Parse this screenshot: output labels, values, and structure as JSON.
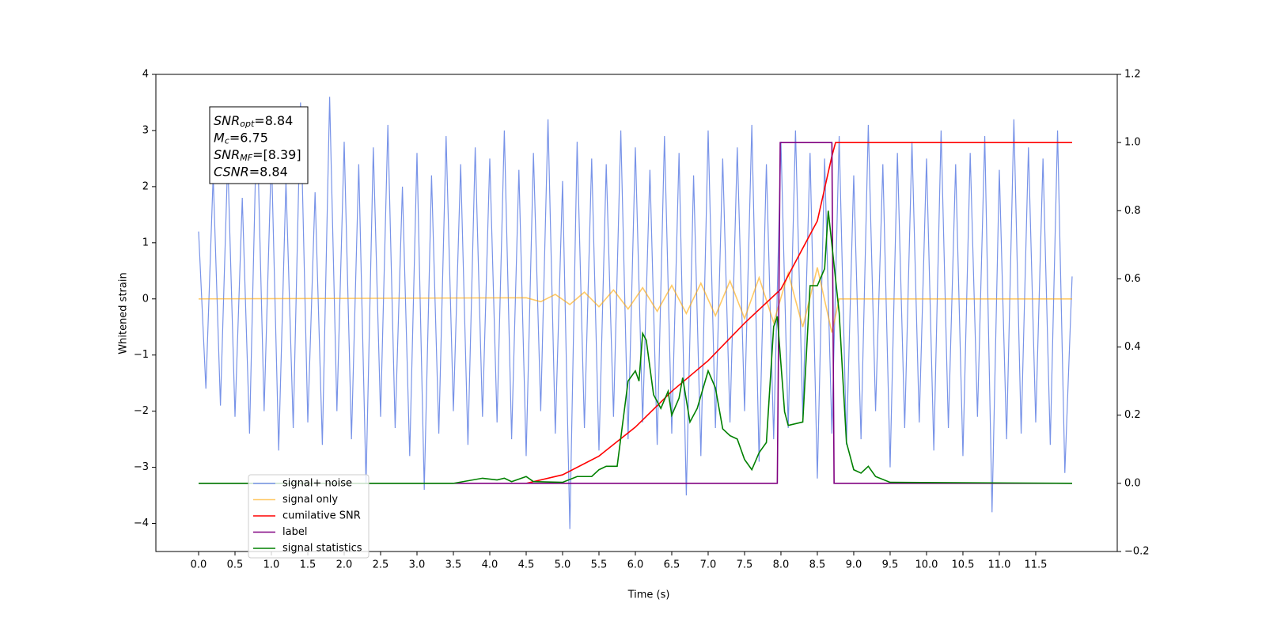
{
  "chart_data": {
    "type": "line",
    "xlabel": "Time (s)",
    "ylabel": "Whitened strain",
    "xlim": [
      -0.587,
      12.62
    ],
    "ylim": [
      -4.5,
      4
    ],
    "y2lim": [
      -0.2,
      1.2
    ],
    "xticks": [
      {
        "value": 0,
        "label": "0.0"
      },
      {
        "value": 0.5,
        "label": "0.5"
      },
      {
        "value": 1,
        "label": "1.0"
      },
      {
        "value": 1.5,
        "label": "1.5"
      },
      {
        "value": 2,
        "label": "2.0"
      },
      {
        "value": 2.5,
        "label": "2.5"
      },
      {
        "value": 3,
        "label": "3.0"
      },
      {
        "value": 3.5,
        "label": "3.5"
      },
      {
        "value": 4,
        "label": "4.0"
      },
      {
        "value": 4.5,
        "label": "4.5"
      },
      {
        "value": 5,
        "label": "5.0"
      },
      {
        "value": 5.5,
        "label": "5.5"
      },
      {
        "value": 6,
        "label": "6.0"
      },
      {
        "value": 6.5,
        "label": "6.5"
      },
      {
        "value": 7,
        "label": "7.0"
      },
      {
        "value": 7.5,
        "label": "7.5"
      },
      {
        "value": 8,
        "label": "8.0"
      },
      {
        "value": 8.5,
        "label": "8.5"
      },
      {
        "value": 9,
        "label": "9.0"
      },
      {
        "value": 9.5,
        "label": "9.5"
      },
      {
        "value": 10,
        "label": "10.0"
      },
      {
        "value": 10.5,
        "label": "10.5"
      },
      {
        "value": 11,
        "label": "11.0"
      },
      {
        "value": 11.5,
        "label": "11.5"
      }
    ],
    "yticks": [
      {
        "value": -4,
        "label": "−4"
      },
      {
        "value": -3,
        "label": "−3"
      },
      {
        "value": -2,
        "label": "−2"
      },
      {
        "value": -1,
        "label": "−1"
      },
      0,
      1,
      2,
      3,
      4
    ],
    "y2ticks": [
      {
        "value": -0.2,
        "label": "−0.2"
      },
      {
        "value": 0,
        "label": "0.0"
      },
      {
        "value": 0.2,
        "label": "0.2"
      },
      {
        "value": 0.4,
        "label": "0.4"
      },
      {
        "value": 0.6,
        "label": "0.6"
      },
      {
        "value": 0.8,
        "label": "0.8"
      },
      {
        "value": 1,
        "label": "1.0"
      },
      {
        "value": 1.2,
        "label": "1.2"
      }
    ],
    "legend": "lower left",
    "annotations": [
      {
        "main": "SNR",
        "sub": "opt",
        "rest": "=8.84"
      },
      {
        "main": "M",
        "sub": "c",
        "rest": "=6.75"
      },
      {
        "main": "SNR",
        "sub": "MF",
        "rest": "=[8.39]"
      },
      {
        "main": "CSNR",
        "rest": "=8.84"
      }
    ],
    "series": [
      {
        "name": "signal+ noise",
        "color": "#7893e8",
        "x": [
          0,
          0.1,
          0.2,
          0.3,
          0.4,
          0.5,
          0.6,
          0.7,
          0.8,
          0.9,
          1,
          1.1,
          1.2,
          1.3,
          1.4,
          1.5,
          1.6,
          1.7,
          1.8,
          1.9,
          2,
          2.1,
          2.2,
          2.3,
          2.4,
          2.5,
          2.6,
          2.7,
          2.8,
          2.9,
          3,
          3.1,
          3.2,
          3.3,
          3.4,
          3.5,
          3.6,
          3.7,
          3.8,
          3.9,
          4,
          4.1,
          4.2,
          4.3,
          4.4,
          4.5,
          4.6,
          4.7,
          4.8,
          4.9,
          5,
          5.1,
          5.2,
          5.3,
          5.4,
          5.5,
          5.6,
          5.7,
          5.8,
          5.9,
          6,
          6.1,
          6.2,
          6.3,
          6.4,
          6.5,
          6.6,
          6.7,
          6.8,
          6.9,
          7,
          7.1,
          7.2,
          7.3,
          7.4,
          7.5,
          7.6,
          7.7,
          7.8,
          7.9,
          8,
          8.1,
          8.2,
          8.3,
          8.4,
          8.5,
          8.6,
          8.7,
          8.8,
          8.9,
          9,
          9.1,
          9.2,
          9.3,
          9.4,
          9.5,
          9.6,
          9.7,
          9.8,
          9.9,
          10,
          10.1,
          10.2,
          10.3,
          10.4,
          10.5,
          10.6,
          10.7,
          10.8,
          10.9,
          11,
          11.1,
          11.2,
          11.3,
          11.4,
          11.5,
          11.6,
          11.7,
          11.8,
          11.9,
          12
        ],
        "values": [
          1.2,
          -1.6,
          2.2,
          -1.9,
          2.5,
          -2.1,
          1.8,
          -2.4,
          3.3,
          -2.0,
          2.6,
          -2.7,
          2.1,
          -2.3,
          3.5,
          -2.2,
          1.9,
          -2.6,
          3.6,
          -2.0,
          2.8,
          -2.5,
          2.4,
          -3.3,
          2.7,
          -2.1,
          3.1,
          -2.3,
          2.0,
          -2.8,
          2.6,
          -3.4,
          2.2,
          -2.4,
          2.9,
          -2.0,
          2.4,
          -2.6,
          2.7,
          -2.1,
          2.5,
          -2.2,
          3.0,
          -2.5,
          2.3,
          -2.8,
          2.6,
          -2.0,
          3.2,
          -2.4,
          2.1,
          -4.1,
          2.8,
          -2.3,
          2.5,
          -2.7,
          2.4,
          -2.1,
          3.0,
          -2.5,
          2.7,
          -2.2,
          2.3,
          -2.6,
          2.9,
          -2.4,
          2.6,
          -3.5,
          2.2,
          -2.8,
          3.0,
          -2.3,
          2.5,
          -2.2,
          2.7,
          -2.0,
          3.1,
          -2.9,
          2.4,
          -2.5,
          2.8,
          -2.3,
          3.0,
          -2.1,
          2.6,
          -3.2,
          2.5,
          -2.4,
          2.9,
          -2.6,
          2.2,
          -2.5,
          3.1,
          -2.0,
          2.4,
          -3.0,
          2.6,
          -2.3,
          2.8,
          -2.2,
          2.5,
          -2.7,
          3.0,
          -2.3,
          2.4,
          -2.8,
          2.6,
          -2.1,
          2.9,
          -3.8,
          2.3,
          -2.5,
          3.2,
          -2.4,
          2.7,
          -2.2,
          2.5,
          -2.6,
          3.0,
          -3.1,
          0.4
        ]
      },
      {
        "name": "signal only",
        "color": "#ffa500",
        "x": [
          0,
          4.5,
          4.7,
          4.9,
          5.1,
          5.3,
          5.5,
          5.7,
          5.9,
          6.1,
          6.3,
          6.5,
          6.7,
          6.9,
          7.1,
          7.3,
          7.5,
          7.7,
          7.9,
          8.1,
          8.3,
          8.5,
          8.7,
          8.8,
          12
        ],
        "values": [
          0,
          0.02,
          -0.05,
          0.08,
          -0.1,
          0.12,
          -0.14,
          0.16,
          -0.18,
          0.2,
          -0.22,
          0.24,
          -0.26,
          0.28,
          -0.3,
          0.32,
          -0.35,
          0.38,
          -0.42,
          0.46,
          -0.5,
          0.56,
          -0.6,
          0,
          0
        ]
      },
      {
        "name": "cumilative SNR",
        "color": "red",
        "axis": "y2",
        "x": [
          4.5,
          5.0,
          5.5,
          6.0,
          6.5,
          7.0,
          7.5,
          8.0,
          8.5,
          8.7,
          8.75,
          12
        ],
        "values": [
          0,
          0.025,
          0.08,
          0.165,
          0.27,
          0.36,
          0.47,
          0.57,
          0.77,
          0.96,
          1,
          1
        ]
      },
      {
        "name": "label",
        "color": "purple",
        "axis": "y2",
        "x": [
          0,
          7.95,
          7.99,
          8.7,
          8.73,
          12
        ],
        "values": [
          0,
          0,
          1,
          1,
          0,
          0
        ]
      },
      {
        "name": "signal statistics",
        "color": "green",
        "axis": "y2",
        "x": [
          0,
          3.5,
          3.9,
          4.1,
          4.2,
          4.3,
          4.5,
          4.6,
          5.0,
          5.2,
          5.4,
          5.5,
          5.6,
          5.75,
          5.9,
          6.0,
          6.05,
          6.1,
          6.15,
          6.25,
          6.35,
          6.45,
          6.5,
          6.6,
          6.65,
          6.75,
          6.85,
          7.0,
          7.1,
          7.2,
          7.3,
          7.4,
          7.5,
          7.6,
          7.7,
          7.8,
          7.9,
          7.95,
          8.05,
          8.1,
          8.3,
          8.4,
          8.5,
          8.6,
          8.65,
          8.8,
          8.9,
          9.0,
          9.1,
          9.2,
          9.3,
          9.5,
          12
        ],
        "values": [
          0,
          0,
          0.015,
          0.01,
          0.015,
          0.005,
          0.02,
          0.005,
          0.003,
          0.02,
          0.02,
          0.04,
          0.05,
          0.05,
          0.3,
          0.33,
          0.3,
          0.44,
          0.42,
          0.26,
          0.22,
          0.27,
          0.2,
          0.25,
          0.31,
          0.18,
          0.22,
          0.33,
          0.28,
          0.16,
          0.14,
          0.13,
          0.07,
          0.04,
          0.09,
          0.12,
          0.46,
          0.49,
          0.21,
          0.17,
          0.18,
          0.58,
          0.58,
          0.63,
          0.8,
          0.5,
          0.12,
          0.04,
          0.03,
          0.05,
          0.02,
          0.003,
          0
        ]
      }
    ]
  }
}
